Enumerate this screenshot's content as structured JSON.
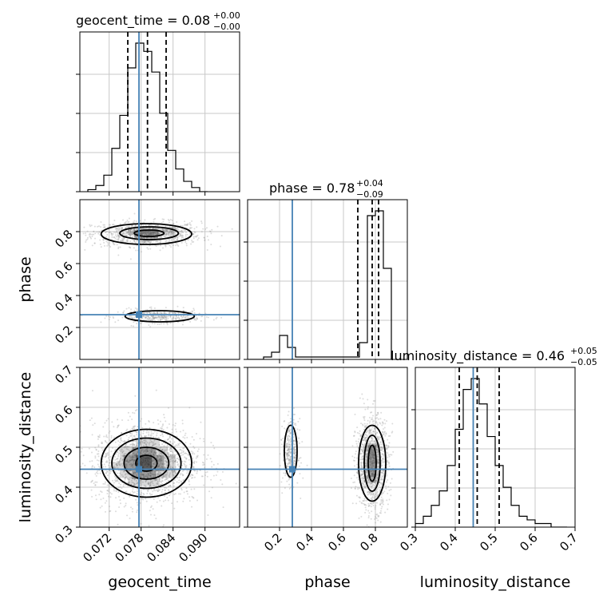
{
  "chart_data": {
    "type": "corner",
    "parameters": [
      "geocent_time",
      "phase",
      "luminosity_distance"
    ],
    "truths": {
      "geocent_time": 0.0776,
      "phase": 0.28,
      "luminosity_distance": 0.445
    },
    "colors": {
      "truth": "#4682b4",
      "contour": "#000000",
      "scatter": "#9a9a9a",
      "grid": "#c8c8c8"
    },
    "titles": {
      "geocent_time": {
        "label": "geocent_time = 0.08",
        "plus": "+0.00",
        "minus": "−0.00"
      },
      "phase": {
        "label": "phase = 0.78",
        "plus": "+0.04",
        "minus": "−0.09"
      },
      "luminosity_distance": {
        "label": "luminosity_distance = 0.46",
        "plus": "+0.05",
        "minus": "−0.05"
      }
    },
    "axes": {
      "geocent_time": {
        "range": [
          0.0665,
          0.0965
        ],
        "ticks": [
          0.072,
          0.078,
          0.084,
          0.09
        ],
        "tick_labels": [
          "0.072",
          "0.078",
          "0.084",
          "0.090"
        ],
        "xlabel": "geocent_time"
      },
      "phase": {
        "range": [
          0.0,
          1.0
        ],
        "ticks": [
          0.2,
          0.4,
          0.6,
          0.8
        ],
        "tick_labels": [
          "0.2",
          "0.4",
          "0.6",
          "0.8"
        ],
        "xlabel": "phase",
        "ylabel": "phase"
      },
      "luminosity_distance": {
        "range": [
          0.3,
          0.7
        ],
        "ticks": [
          0.3,
          0.4,
          0.5,
          0.6,
          0.7
        ],
        "tick_labels": [
          "0.3",
          "0.4",
          "0.5",
          "0.6",
          "0.7"
        ],
        "xlabel": "luminosity_distance",
        "ylabel": "luminosity_distance"
      }
    },
    "histograms": {
      "geocent_time": {
        "bin_edges": [
          0.068,
          0.0695,
          0.071,
          0.0725,
          0.074,
          0.0755,
          0.077,
          0.0785,
          0.08,
          0.0815,
          0.083,
          0.0845,
          0.086,
          0.0875,
          0.089,
          0.0905
        ],
        "counts": [
          1,
          3,
          8,
          21,
          37,
          60,
          72,
          68,
          58,
          38,
          20,
          11,
          5,
          2,
          0
        ],
        "quantiles": [
          0.0755,
          0.0792,
          0.0827
        ]
      },
      "phase": {
        "bin_edges": [
          0.0,
          0.05,
          0.1,
          0.15,
          0.2,
          0.25,
          0.3,
          0.35,
          0.4,
          0.45,
          0.5,
          0.55,
          0.6,
          0.65,
          0.7,
          0.75,
          0.8,
          0.85,
          0.9
        ],
        "counts": [
          0,
          0,
          1,
          3,
          10,
          5,
          1,
          1,
          1,
          1,
          1,
          1,
          1,
          1,
          7,
          60,
          62,
          38
        ],
        "quantiles": [
          0.69,
          0.78,
          0.82
        ]
      },
      "luminosity_distance": {
        "bin_edges": [
          0.3,
          0.32,
          0.34,
          0.36,
          0.38,
          0.4,
          0.42,
          0.44,
          0.46,
          0.48,
          0.5,
          0.52,
          0.54,
          0.56,
          0.58,
          0.6,
          0.62,
          0.64,
          0.66,
          0.68
        ],
        "counts": [
          1,
          3,
          6,
          10,
          17,
          27,
          38,
          41,
          34,
          25,
          17,
          11,
          6,
          3,
          2,
          1,
          1,
          0,
          0
        ],
        "quantiles": [
          0.41,
          0.455,
          0.51
        ]
      }
    },
    "contours_2d": {
      "geocent_time_vs_phase": [
        {
          "cx": 0.079,
          "cy": 0.785,
          "rx": 0.0085,
          "ry": 0.065,
          "level": "outer"
        },
        {
          "cx": 0.0795,
          "cy": 0.79,
          "rx": 0.0055,
          "ry": 0.04,
          "level": "middle"
        },
        {
          "cx": 0.0795,
          "cy": 0.79,
          "rx": 0.0028,
          "ry": 0.02,
          "level": "inner"
        },
        {
          "cx": 0.0815,
          "cy": 0.27,
          "rx": 0.0065,
          "ry": 0.035,
          "level": "outer"
        }
      ],
      "geocent_time_vs_luminosity_distance": [
        {
          "cx": 0.079,
          "cy": 0.46,
          "rx": 0.0085,
          "ry": 0.085,
          "level": "outer"
        },
        {
          "cx": 0.079,
          "cy": 0.46,
          "rx": 0.0065,
          "ry": 0.063,
          "level": "middle"
        },
        {
          "cx": 0.079,
          "cy": 0.46,
          "rx": 0.0042,
          "ry": 0.04,
          "level": "inner"
        },
        {
          "cx": 0.079,
          "cy": 0.46,
          "rx": 0.002,
          "ry": 0.02,
          "level": "core"
        }
      ],
      "phase_vs_luminosity_distance": [
        {
          "cx": 0.27,
          "cy": 0.49,
          "rx": 0.04,
          "ry": 0.065,
          "level": "outer"
        },
        {
          "cx": 0.78,
          "cy": 0.46,
          "rx": 0.085,
          "ry": 0.095,
          "level": "outer"
        },
        {
          "cx": 0.78,
          "cy": 0.46,
          "rx": 0.05,
          "ry": 0.07,
          "level": "middle"
        },
        {
          "cx": 0.78,
          "cy": 0.46,
          "rx": 0.025,
          "ry": 0.045,
          "level": "inner"
        }
      ]
    }
  }
}
